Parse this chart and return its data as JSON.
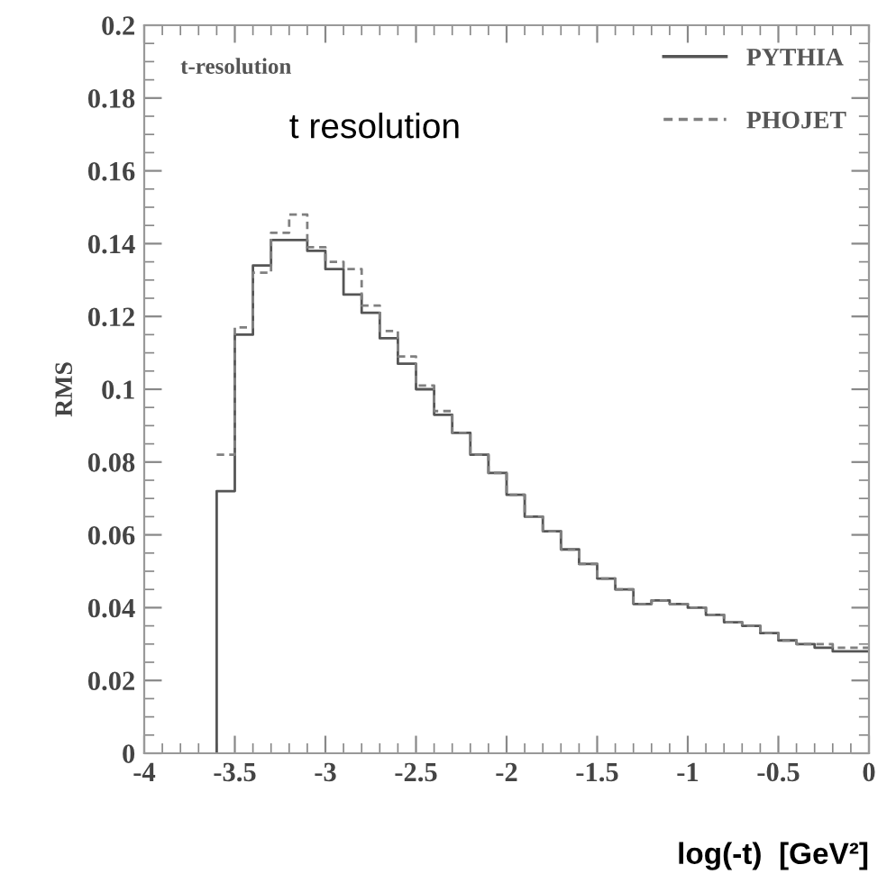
{
  "chart_data": {
    "type": "histogram",
    "bins": [
      -3.6,
      -3.5,
      -3.4,
      -3.3,
      -3.2,
      -3.1,
      -3.0,
      -2.9,
      -2.8,
      -2.7,
      -2.6,
      -2.5,
      -2.4,
      -2.3,
      -2.2,
      -2.1,
      -2.0,
      -1.9,
      -1.8,
      -1.7,
      -1.6,
      -1.5,
      -1.4,
      -1.3,
      -1.2,
      -1.1,
      -1.0,
      -0.9,
      -0.8,
      -0.7,
      -0.6,
      -0.5,
      -0.4,
      -0.3,
      -0.2,
      -0.1,
      0
    ],
    "series": [
      {
        "name": "PYTHIA",
        "color": "#555555",
        "line_style": "solid",
        "values": [
          0.072,
          0.115,
          0.134,
          0.141,
          0.141,
          0.138,
          0.133,
          0.126,
          0.121,
          0.114,
          0.107,
          0.1,
          0.093,
          0.088,
          0.082,
          0.077,
          0.071,
          0.065,
          0.061,
          0.056,
          0.052,
          0.048,
          0.045,
          0.041,
          0.042,
          0.041,
          0.04,
          0.038,
          0.036,
          0.035,
          0.033,
          0.031,
          0.03,
          0.029,
          0.028,
          0.028
        ]
      },
      {
        "name": "PHOJET",
        "color": "#808080",
        "line_style": "dashed",
        "values": [
          0.082,
          0.117,
          0.132,
          0.143,
          0.148,
          0.139,
          0.135,
          0.133,
          0.123,
          0.116,
          0.109,
          0.101,
          0.094,
          0.088,
          0.082,
          0.077,
          0.071,
          0.065,
          0.061,
          0.056,
          0.052,
          0.048,
          0.045,
          0.041,
          0.042,
          0.041,
          0.04,
          0.038,
          0.036,
          0.035,
          0.033,
          0.031,
          0.03,
          0.03,
          0.029,
          0.029
        ]
      }
    ],
    "xlim": [
      -4,
      0
    ],
    "xticks": [
      -4,
      -3.5,
      -3,
      -2.5,
      -2,
      -1.5,
      -1,
      -0.5,
      0
    ],
    "ylim": [
      0,
      0.2
    ],
    "yticks": [
      0,
      0.02,
      0.04,
      0.06,
      0.08,
      0.1,
      0.12,
      0.14,
      0.16,
      0.18,
      0.2
    ],
    "ylabel": "RMS",
    "xlabel": "log(-t)  [GeV²]",
    "annotations": [
      "t-resolution",
      "t resolution"
    ],
    "legend": "top right",
    "grid": false
  }
}
